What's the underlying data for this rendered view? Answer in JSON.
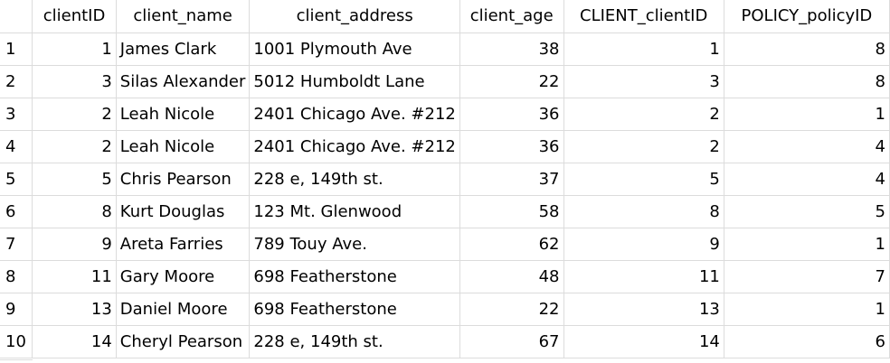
{
  "columns": [
    "clientID",
    "client_name",
    "client_address",
    "client_age",
    "CLIENT_clientID",
    "POLICY_policyID"
  ],
  "rows": [
    {
      "row_number": "1",
      "cells": [
        "1",
        "James Clark",
        "1001 Plymouth Ave",
        "38",
        "1",
        "8"
      ]
    },
    {
      "row_number": "2",
      "cells": [
        "3",
        "Silas Alexander",
        "5012 Humboldt Lane",
        "22",
        "3",
        "8"
      ]
    },
    {
      "row_number": "3",
      "cells": [
        "2",
        "Leah Nicole",
        "2401 Chicago Ave. #212",
        "36",
        "2",
        "1"
      ]
    },
    {
      "row_number": "4",
      "cells": [
        "2",
        "Leah Nicole",
        "2401 Chicago Ave. #212",
        "36",
        "2",
        "4"
      ]
    },
    {
      "row_number": "5",
      "cells": [
        "5",
        "Chris Pearson",
        "228 e, 149th st.",
        "37",
        "5",
        "4"
      ]
    },
    {
      "row_number": "6",
      "cells": [
        "8",
        "Kurt Douglas",
        "123 Mt. Glenwood",
        "58",
        "8",
        "5"
      ]
    },
    {
      "row_number": "7",
      "cells": [
        "9",
        "Areta Farries",
        "789 Touy Ave.",
        "62",
        "9",
        "1"
      ]
    },
    {
      "row_number": "8",
      "cells": [
        "11",
        "Gary Moore",
        "698 Featherstone",
        "48",
        "11",
        "7"
      ]
    },
    {
      "row_number": "9",
      "cells": [
        "13",
        "Daniel Moore",
        "698 Featherstone",
        "22",
        "13",
        "1"
      ]
    },
    {
      "row_number": "10",
      "cells": [
        "14",
        "Cheryl Pearson",
        "228 e, 149th st.",
        "67",
        "14",
        "6"
      ]
    }
  ]
}
